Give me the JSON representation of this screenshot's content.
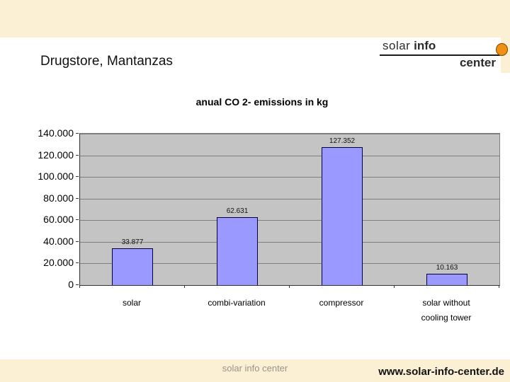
{
  "slide": {
    "title": "Drugstore, Mantanzas",
    "band_color": "#FBEFD4",
    "background_color": "#FFFFFF"
  },
  "logo": {
    "line1_word1": "solar",
    "line1_word2": "info",
    "line2": "center",
    "dot_color": "#EF8F13"
  },
  "chart_data": {
    "type": "bar",
    "title": "anual CO 2- emissions in kg",
    "categories": [
      "solar",
      "combi-variation",
      "compressor",
      "solar without cooling tower"
    ],
    "category_lines": [
      [
        "solar"
      ],
      [
        "combi-variation"
      ],
      [
        "compressor"
      ],
      [
        "solar without",
        "cooling tower"
      ]
    ],
    "values": [
      33877,
      62631,
      127352,
      10163
    ],
    "value_labels": [
      "33.877",
      "62.631",
      "127.352",
      "10.163"
    ],
    "y_tick_labels": [
      "140.000",
      "120.000",
      "100.000",
      "80.000",
      "60.000",
      "40.000",
      "20.000",
      "0"
    ],
    "ylim": [
      0,
      140000
    ],
    "xlabel": "",
    "ylabel": "",
    "grid": true,
    "legend": "none",
    "bar_color": "#9999FF",
    "bar_border_color": "#00003E",
    "plot_bg": "#C4C4C4",
    "gridline_color": "#7F7F7F"
  },
  "footer": {
    "center_text": "solar info center",
    "right_text": "www.solar-info-center.de"
  }
}
